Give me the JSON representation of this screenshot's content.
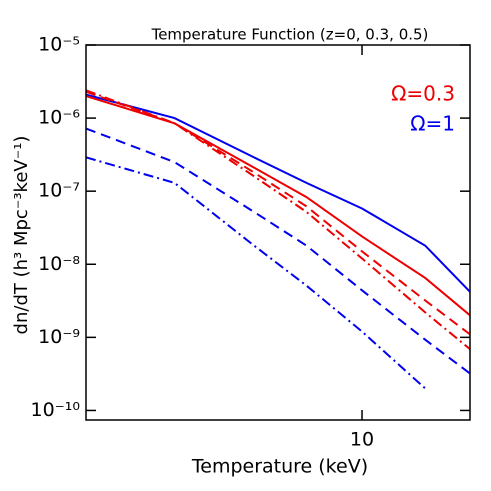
{
  "chart_data": {
    "type": "line",
    "title": "Temperature Function (z=0, 0.3, 0.5)",
    "x_label": "Temperature (keV)",
    "y_label": "dn/dT (h³ Mpc⁻³keV⁻¹)",
    "log_x": true,
    "log_y": true,
    "x": [
      1.7,
      3,
      5,
      7,
      10,
      15,
      20
    ],
    "xlim": [
      1.7,
      20
    ],
    "xticks": [
      10
    ],
    "ylim": [
      7.4e-11,
      1e-05
    ],
    "yticks": [
      {
        "value": 1e-05,
        "label": "10⁻⁵"
      },
      {
        "value": 1e-06,
        "label": "10⁻⁶"
      },
      {
        "value": 1e-07,
        "label": "10⁻⁷"
      },
      {
        "value": 1e-08,
        "label": "10⁻⁸"
      },
      {
        "value": 1e-09,
        "label": "10⁻⁹"
      },
      {
        "value": 1e-10,
        "label": "10⁻¹⁰"
      }
    ],
    "legend": [
      {
        "label": "Ω=0.3",
        "color": "#ee0000"
      },
      {
        "label": "Ω=1",
        "color": "#0000ee"
      }
    ],
    "series": [
      {
        "color": "#0000ee",
        "dash": "solid",
        "values": [
          2.1e-06,
          1e-06,
          2.9e-07,
          1.3e-07,
          5.8e-08,
          1.8e-08,
          4.2e-09
        ]
      },
      {
        "color": "#ee0000",
        "dash": "solid",
        "values": [
          2e-06,
          8.5e-07,
          2.1e-07,
          8.3e-08,
          2.4e-08,
          6.5e-09,
          2e-09
        ]
      },
      {
        "color": "#ee0000",
        "dash": "dashed",
        "values": [
          2.3e-06,
          8.5e-07,
          1.8e-07,
          6.2e-08,
          1.5e-08,
          3.2e-09,
          1.1e-09
        ]
      },
      {
        "color": "#ee0000",
        "dash": "dashdot",
        "values": [
          2.4e-06,
          8.5e-07,
          1.6e-07,
          5.2e-08,
          1.2e-08,
          2.2e-09,
          6.9e-10
        ]
      },
      {
        "color": "#0000ee",
        "dash": "dashed",
        "values": [
          7.2e-07,
          2.5e-07,
          5.2e-08,
          1.8e-08,
          4.4e-09,
          9.3e-10,
          3.2e-10
        ]
      },
      {
        "color": "#0000ee",
        "dash": "dashdot",
        "values": [
          2.9e-07,
          1.3e-07,
          1.8e-08,
          5.1e-09,
          1.2e-09,
          2e-10,
          null
        ]
      }
    ]
  }
}
